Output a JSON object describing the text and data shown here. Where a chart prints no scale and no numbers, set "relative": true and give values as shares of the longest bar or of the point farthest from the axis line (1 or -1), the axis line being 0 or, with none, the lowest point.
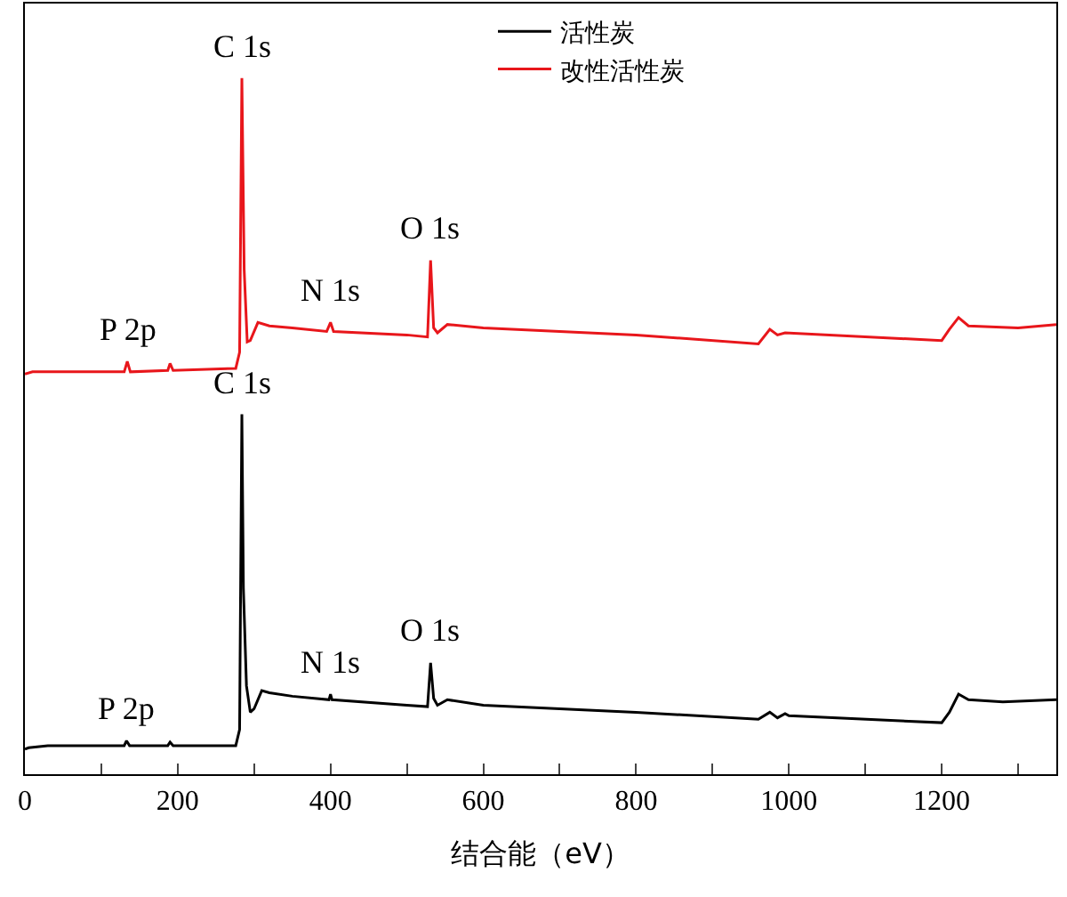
{
  "chart_data": {
    "type": "line",
    "relative": true,
    "xlabel": "结合能（eV）",
    "xlim": [
      0,
      1350
    ],
    "xticks": [
      0,
      {
        "value": 100,
        "label": null
      },
      200,
      {
        "value": 300,
        "label": null
      },
      400,
      {
        "value": 500,
        "label": null
      },
      600,
      {
        "value": 700,
        "label": null
      },
      800,
      {
        "value": 900,
        "label": null
      },
      1000,
      {
        "value": 1100,
        "label": null
      },
      1200,
      {
        "value": 1300,
        "label": null
      }
    ],
    "tick_labels": "x",
    "legend": "top right",
    "line_style": "solid",
    "series": [
      {
        "name": "活性炭",
        "color": "#000000",
        "x": [
          0,
          5,
          30,
          130,
          133,
          137,
          187,
          190,
          194,
          276,
          281,
          284,
          286,
          290,
          295,
          300,
          310,
          320,
          350,
          398,
          400,
          402,
          500,
          527,
          531,
          535,
          540,
          553,
          600,
          800,
          960,
          975,
          985,
          995,
          1000,
          1200,
          1210,
          1222,
          1235,
          1280,
          1350
        ],
        "values": [
          0.036,
          0.038,
          0.041,
          0.041,
          0.048,
          0.041,
          0.041,
          0.046,
          0.041,
          0.041,
          0.064,
          0.517,
          0.267,
          0.127,
          0.089,
          0.094,
          0.12,
          0.117,
          0.112,
          0.107,
          0.115,
          0.107,
          0.099,
          0.097,
          0.16,
          0.109,
          0.099,
          0.107,
          0.099,
          0.089,
          0.079,
          0.089,
          0.081,
          0.087,
          0.084,
          0.074,
          0.089,
          0.115,
          0.107,
          0.104,
          0.107
        ]
      },
      {
        "name": "改性活性炭",
        "color": "#e8161b",
        "x": [
          0,
          10,
          130,
          134,
          138,
          187,
          190,
          194,
          276,
          281,
          284,
          287,
          291,
          295,
          305,
          320,
          350,
          395,
          400,
          404,
          500,
          527,
          531,
          535,
          540,
          553,
          600,
          800,
          960,
          975,
          985,
          995,
          1200,
          1210,
          1222,
          1235,
          1300,
          1350
        ],
        "values": [
          0.575,
          0.578,
          0.578,
          0.593,
          0.578,
          0.58,
          0.59,
          0.58,
          0.583,
          0.606,
          1.0,
          0.725,
          0.621,
          0.623,
          0.649,
          0.644,
          0.641,
          0.636,
          0.649,
          0.636,
          0.631,
          0.628,
          0.738,
          0.641,
          0.634,
          0.646,
          0.641,
          0.631,
          0.618,
          0.639,
          0.631,
          0.634,
          0.623,
          0.639,
          0.656,
          0.644,
          0.641,
          0.646
        ]
      }
    ],
    "annotations": [
      {
        "text": "C 1s",
        "x": 284,
        "y": 1.0
      },
      {
        "text": "N 1s",
        "x": 400,
        "y": 0.649
      },
      {
        "text": "O 1s",
        "x": 531,
        "y": 0.738
      },
      {
        "text": "P 2p",
        "x": 134,
        "y": 0.593
      },
      {
        "text": "C 1s",
        "x": 284,
        "y": 0.517
      },
      {
        "text": "N 1s",
        "x": 400,
        "y": 0.115
      },
      {
        "text": "O 1s",
        "x": 531,
        "y": 0.16
      },
      {
        "text": "P 2p",
        "x": 133,
        "y": 0.048
      }
    ]
  }
}
